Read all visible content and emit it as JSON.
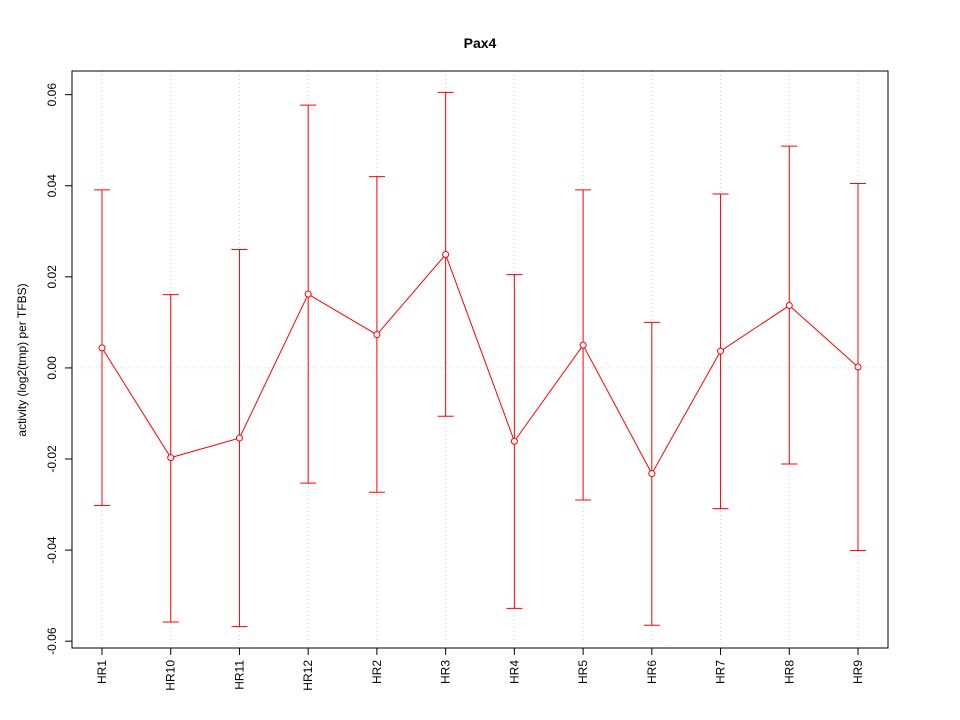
{
  "chart_data": {
    "type": "line",
    "title": "Pax4",
    "xlabel": "",
    "ylabel": "activity (log2(tmp) per TFBS)",
    "categories": [
      "HR1",
      "HR10",
      "HR11",
      "HR12",
      "HR2",
      "HR3",
      "HR4",
      "HR5",
      "HR6",
      "HR7",
      "HR8",
      "HR9"
    ],
    "values": [
      0.0044,
      -0.0197,
      -0.0154,
      0.0162,
      0.0073,
      0.0249,
      -0.0161,
      0.005,
      -0.0232,
      0.0037,
      0.0137,
      0.0002
    ],
    "error_upper": [
      0.0391,
      0.0161,
      0.026,
      0.0577,
      0.042,
      0.0605,
      0.0205,
      0.0391,
      0.01,
      0.0382,
      0.0487,
      0.0405
    ],
    "error_lower": [
      -0.0302,
      -0.0558,
      -0.0568,
      -0.0253,
      -0.0273,
      -0.0106,
      -0.0528,
      -0.029,
      -0.0565,
      -0.0309,
      -0.0211,
      -0.0401
    ],
    "yticks": [
      -0.06,
      -0.04,
      -0.02,
      0.0,
      0.02,
      0.04,
      0.06
    ],
    "ytick_labels": [
      "-0.06",
      "-0.04",
      "-0.02",
      "0.00",
      "0.02",
      "0.04",
      "0.06"
    ],
    "ylim": [
      -0.0615,
      0.0652
    ],
    "grid": true,
    "color": "#ff0000"
  }
}
